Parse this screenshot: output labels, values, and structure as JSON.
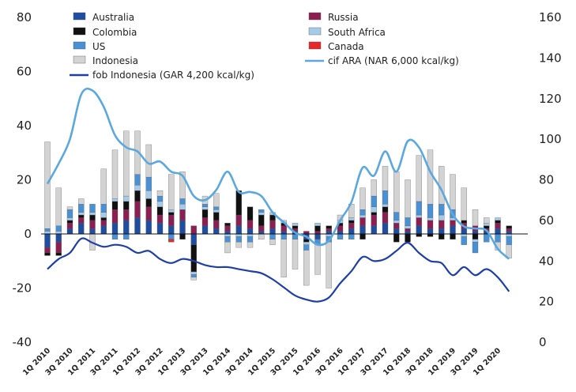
{
  "chart_data": {
    "type": "bar",
    "stacked": true,
    "title": "",
    "xlabel": "",
    "ylabel": "",
    "ylim": [
      -40,
      80
    ],
    "y2lim": [
      0,
      160
    ],
    "y_ticks": [
      -40,
      -20,
      0,
      20,
      40,
      60,
      80
    ],
    "y2_ticks": [
      0,
      20,
      40,
      60,
      80,
      100,
      120,
      140,
      160
    ],
    "legend_position": "top",
    "grid": false,
    "colors": {
      "Australia": "#1f4ea1",
      "Russia": "#8c1f52",
      "Colombia": "#111111",
      "South Africa": "#a6cbe8",
      "US": "#4a90d4",
      "Canada": "#e8282b",
      "Indonesia": "#d3d3d3",
      "cif ARA (NAR 6,000 kcal/kg)": "#5ba8e0",
      "fob Indonesia (GAR 4,200 kcal/kg)": "#1f3fa8"
    },
    "x_tick_labels": [
      "1Q 2010",
      "3Q 2010",
      "1Q 2011",
      "3Q 2011",
      "1Q 2012",
      "3Q 2012",
      "1Q 2013",
      "3Q 2013",
      "1Q 2014",
      "3Q 2014",
      "1Q 2015",
      "3Q 2015",
      "1Q 2016",
      "3Q 2016",
      "1Q 2017",
      "3Q 2017",
      "1Q 2018",
      "3Q 2018",
      "1Q 2019",
      "3Q 2019",
      "1Q 2020"
    ],
    "categories": [
      "1Q 2010",
      "2Q 2010",
      "3Q 2010",
      "4Q 2010",
      "1Q 2011",
      "2Q 2011",
      "3Q 2011",
      "4Q 2011",
      "1Q 2012",
      "2Q 2012",
      "3Q 2012",
      "4Q 2012",
      "1Q 2013",
      "2Q 2013",
      "3Q 2013",
      "4Q 2013",
      "1Q 2014",
      "2Q 2014",
      "3Q 2014",
      "4Q 2014",
      "1Q 2015",
      "2Q 2015",
      "3Q 2015",
      "4Q 2015",
      "1Q 2016",
      "2Q 2016",
      "3Q 2016",
      "4Q 2016",
      "1Q 2017",
      "2Q 2017",
      "3Q 2017",
      "4Q 2017",
      "1Q 2018",
      "2Q 2018",
      "3Q 2018",
      "4Q 2018",
      "1Q 2019",
      "2Q 2019",
      "3Q 2019",
      "4Q 2019",
      "1Q 2020",
      "2Q 2020"
    ],
    "series": [
      {
        "name": "Australia",
        "kind": "bar",
        "values": [
          -5,
          -3,
          2,
          4,
          2,
          3,
          4,
          5,
          6,
          5,
          4,
          3,
          5,
          -4,
          3,
          2,
          1,
          3,
          2,
          1,
          2,
          1,
          1,
          -2,
          -2,
          1,
          1,
          2,
          3,
          3,
          4,
          2,
          1,
          3,
          2,
          2,
          3,
          2,
          1,
          1,
          2,
          1
        ]
      },
      {
        "name": "Russia",
        "kind": "bar",
        "values": [
          -2,
          -4,
          2,
          2,
          3,
          2,
          5,
          4,
          6,
          5,
          3,
          4,
          4,
          3,
          3,
          3,
          2,
          4,
          3,
          2,
          3,
          2,
          1,
          1,
          1,
          1,
          2,
          2,
          3,
          4,
          4,
          2,
          1,
          3,
          3,
          3,
          2,
          2,
          2,
          1,
          2,
          1
        ]
      },
      {
        "name": "Colombia",
        "kind": "bar",
        "values": [
          -1,
          -1,
          1,
          1,
          2,
          1,
          3,
          3,
          4,
          3,
          3,
          1,
          -2,
          -10,
          3,
          3,
          1,
          9,
          5,
          4,
          2,
          1,
          1,
          -1,
          2,
          1,
          1,
          1,
          -2,
          1,
          2,
          -3,
          -3,
          -1,
          -1,
          -2,
          -2,
          1,
          -2,
          1,
          1,
          1
        ]
      },
      {
        "name": "South Africa",
        "kind": "bar",
        "values": [
          1,
          1,
          1,
          1,
          1,
          2,
          1,
          2,
          2,
          3,
          2,
          1,
          2,
          -1,
          1,
          1,
          -1,
          -1,
          -1,
          1,
          1,
          1,
          1,
          -1,
          1,
          -1,
          1,
          1,
          1,
          2,
          1,
          1,
          1,
          1,
          1,
          2,
          1,
          -1,
          -1,
          1,
          1,
          -1
        ]
      },
      {
        "name": "US",
        "kind": "bar",
        "values": [
          1,
          2,
          3,
          3,
          3,
          3,
          -2,
          -2,
          4,
          5,
          2,
          -2,
          2,
          -1,
          1,
          1,
          -2,
          -2,
          -2,
          1,
          -2,
          -2,
          -2,
          -2,
          -2,
          -2,
          -2,
          -2,
          2,
          4,
          5,
          3,
          3,
          5,
          5,
          4,
          3,
          -3,
          -4,
          -3,
          -3,
          -3
        ]
      },
      {
        "name": "Canada",
        "kind": "bar",
        "values": [
          0,
          0,
          0,
          0,
          0,
          0,
          0,
          0,
          0,
          0,
          0,
          -1,
          0,
          0,
          0,
          0,
          0,
          0,
          0,
          0,
          0,
          0,
          0,
          0,
          0,
          0,
          0,
          0,
          0,
          0,
          0,
          0,
          0,
          0,
          0,
          0,
          0,
          0,
          0,
          0,
          0,
          0
        ]
      },
      {
        "name": "Indonesia",
        "kind": "bar",
        "values": [
          32,
          14,
          1,
          2,
          -6,
          13,
          18,
          24,
          16,
          12,
          2,
          13,
          10,
          -1,
          3,
          5,
          -4,
          -2,
          -2,
          -2,
          -2,
          -14,
          -11,
          -13,
          -11,
          -17,
          2,
          5,
          8,
          6,
          9,
          15,
          14,
          17,
          20,
          14,
          13,
          12,
          6,
          2,
          -3,
          -5
        ]
      },
      {
        "name": "cif ARA (NAR 6,000 kcal/kg)",
        "kind": "line",
        "axis": "right",
        "values": [
          78,
          88,
          100,
          122,
          124,
          116,
          102,
          96,
          94,
          88,
          89,
          84,
          82,
          72,
          70,
          75,
          84,
          74,
          74,
          72,
          64,
          59,
          54,
          52,
          48,
          50,
          60,
          69,
          86,
          82,
          94,
          84,
          99,
          96,
          84,
          75,
          63,
          57,
          56,
          55,
          46,
          41
        ]
      },
      {
        "name": "fob Indonesia (GAR 4,200 kcal/kg)",
        "kind": "line",
        "axis": "right",
        "values": [
          36,
          41,
          44,
          51,
          49,
          47,
          48,
          47,
          44,
          45,
          41,
          39,
          41,
          40,
          38,
          37,
          37,
          36,
          35,
          34,
          31,
          27,
          23,
          21,
          20,
          22,
          29,
          35,
          42,
          40,
          41,
          45,
          49,
          44,
          40,
          39,
          33,
          37,
          33,
          36,
          32,
          25
        ]
      }
    ]
  }
}
